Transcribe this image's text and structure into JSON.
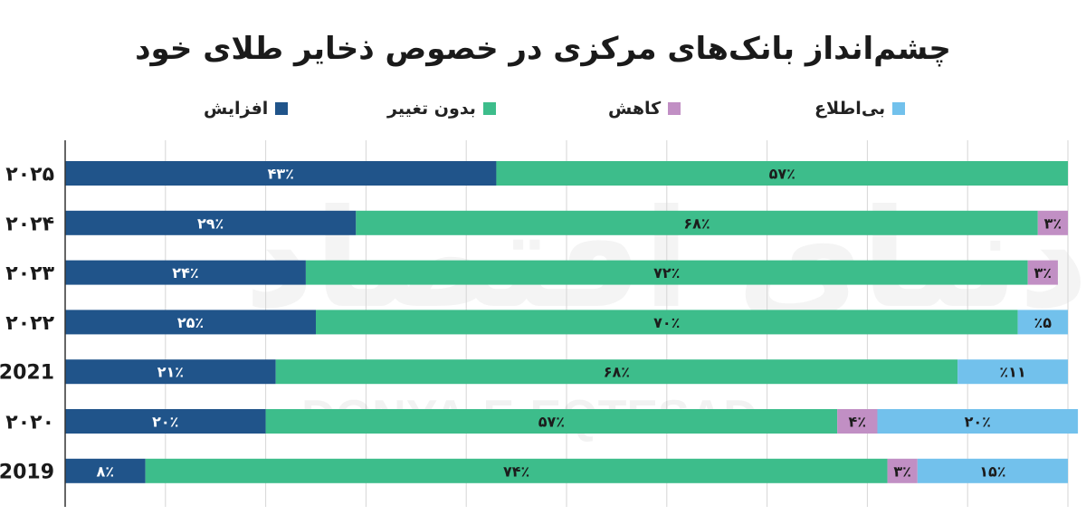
{
  "chart_data": {
    "type": "bar",
    "orientation": "horizontal",
    "stacked": true,
    "title": "چشم‌انداز بانک‌های مرکزی در خصوص ذخایر طلای خود",
    "categories": [
      "۲۰۲۵",
      "۲۰۲۴",
      "۲۰۲۳",
      "۲۰۲۲",
      "2021",
      "۲۰۲۰",
      "2019"
    ],
    "series": [
      {
        "name": "افزایش",
        "color": "#20548a",
        "values": [
          43,
          29,
          24,
          25,
          21,
          20,
          8
        ],
        "labels": [
          "۴۳٪",
          "۲۹٪",
          "۲۴٪",
          "۲۵٪",
          "۲۱٪",
          "۲۰٪",
          "۸٪"
        ]
      },
      {
        "name": "بدون تغییر",
        "color": "#3dbd8b",
        "values": [
          57,
          68,
          72,
          70,
          68,
          57,
          74
        ],
        "labels": [
          "۵۷٪",
          "۶۸٪",
          "۷۲٪",
          "۷۰٪",
          "۶۸٪",
          "۵۷٪",
          "۷۴٪"
        ]
      },
      {
        "name": "کاهش",
        "color": "#c18fc4",
        "values": [
          0,
          3,
          3,
          0,
          0,
          4,
          3
        ],
        "labels": [
          "",
          "۳٪",
          "۳٪",
          "",
          "",
          "۴٪",
          "۳٪"
        ]
      },
      {
        "name": "بی‌اطلاع",
        "color": "#72c1ec",
        "values": [
          0,
          0,
          0,
          5,
          11,
          20,
          15
        ],
        "labels": [
          "",
          "",
          "",
          "٪۵",
          "٪۱۱",
          "۲۰٪",
          "۱۵٪"
        ]
      }
    ],
    "xlim": [
      0,
      100
    ],
    "grid": true,
    "legend": "top"
  },
  "watermark": {
    "persian": "دنیای اقتصاد",
    "latin": "DONYA-E-EQTESAD"
  }
}
